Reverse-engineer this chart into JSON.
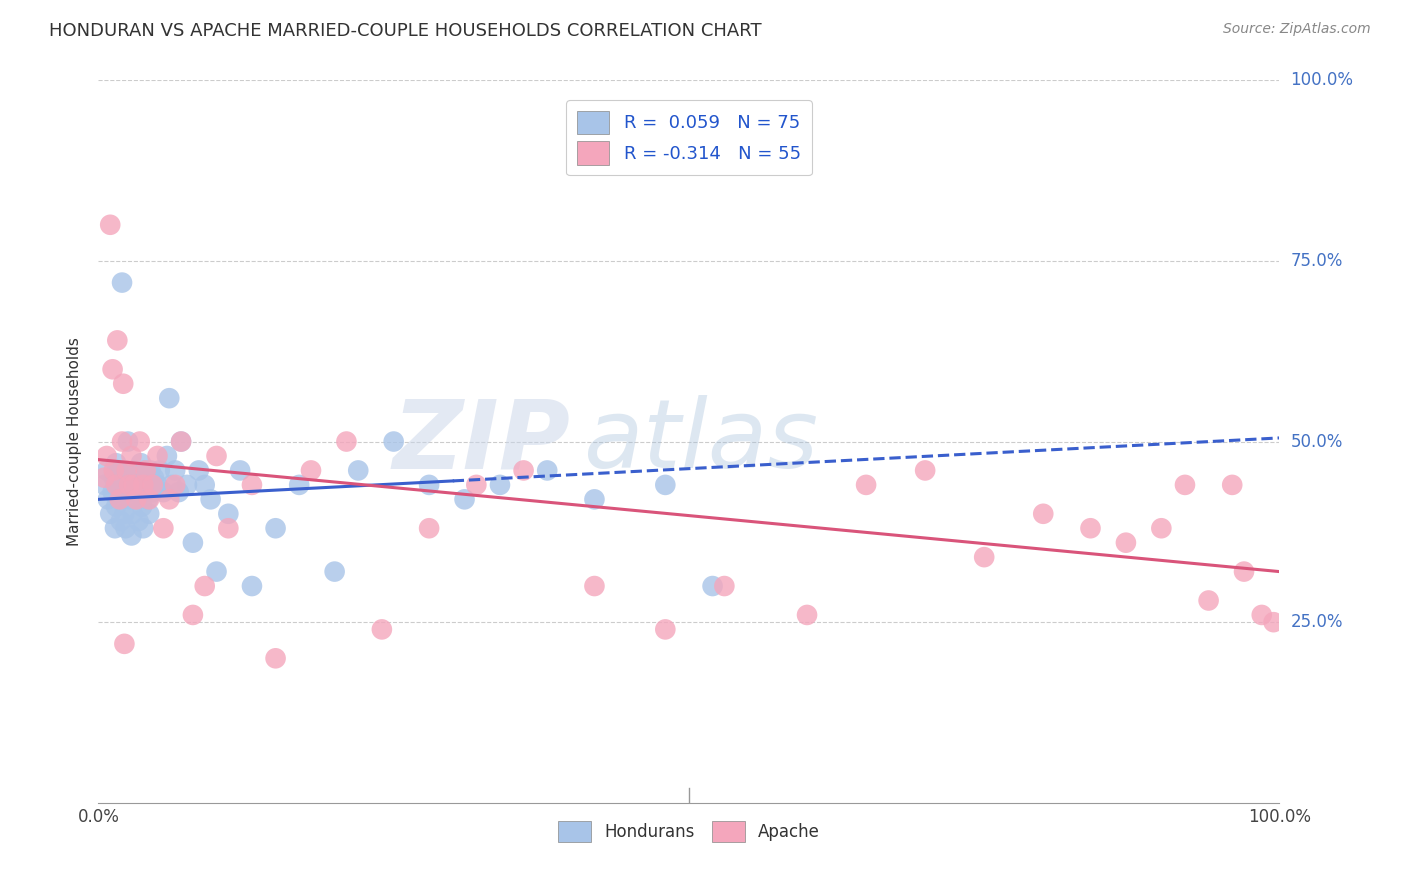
{
  "title": "HONDURAN VS APACHE MARRIED-COUPLE HOUSEHOLDS CORRELATION CHART",
  "source": "Source: ZipAtlas.com",
  "ylabel": "Married-couple Households",
  "watermark_zip": "ZIP",
  "watermark_atlas": "atlas",
  "legend_r_honduran": "R =  0.059",
  "legend_n_honduran": "N = 75",
  "legend_r_apache": "R = -0.314",
  "legend_n_apache": "N = 55",
  "honduran_color": "#a8c4e8",
  "apache_color": "#f4a6bc",
  "line_honduran_color": "#3a5fcd",
  "line_apache_color": "#d9547a",
  "background_color": "#ffffff",
  "grid_color": "#cccccc",
  "xlim": [
    0,
    1.0
  ],
  "ylim": [
    0,
    1.0
  ],
  "ytick_labels": [
    "25.0%",
    "50.0%",
    "75.0%",
    "100.0%"
  ],
  "ytick_positions": [
    0.25,
    0.5,
    0.75,
    1.0
  ],
  "honduran_x": [
    0.005,
    0.007,
    0.008,
    0.01,
    0.012,
    0.013,
    0.014,
    0.015,
    0.015,
    0.016,
    0.017,
    0.018,
    0.019,
    0.02,
    0.02,
    0.021,
    0.022,
    0.022,
    0.023,
    0.024,
    0.025,
    0.025,
    0.026,
    0.027,
    0.028,
    0.029,
    0.03,
    0.03,
    0.031,
    0.032,
    0.033,
    0.034,
    0.035,
    0.036,
    0.037,
    0.038,
    0.039,
    0.04,
    0.041,
    0.042,
    0.043,
    0.044,
    0.045,
    0.046,
    0.047,
    0.05,
    0.052,
    0.055,
    0.058,
    0.06,
    0.062,
    0.065,
    0.068,
    0.07,
    0.075,
    0.08,
    0.085,
    0.09,
    0.095,
    0.1,
    0.11,
    0.12,
    0.13,
    0.15,
    0.17,
    0.2,
    0.22,
    0.25,
    0.28,
    0.31,
    0.34,
    0.38,
    0.42,
    0.48,
    0.52
  ],
  "honduran_y": [
    0.44,
    0.46,
    0.42,
    0.4,
    0.43,
    0.45,
    0.38,
    0.41,
    0.47,
    0.44,
    0.46,
    0.42,
    0.39,
    0.72,
    0.44,
    0.43,
    0.46,
    0.4,
    0.38,
    0.45,
    0.43,
    0.5,
    0.44,
    0.42,
    0.37,
    0.4,
    0.46,
    0.44,
    0.43,
    0.45,
    0.42,
    0.39,
    0.44,
    0.47,
    0.41,
    0.38,
    0.46,
    0.43,
    0.44,
    0.42,
    0.4,
    0.46,
    0.44,
    0.43,
    0.45,
    0.44,
    0.46,
    0.43,
    0.48,
    0.56,
    0.44,
    0.46,
    0.43,
    0.5,
    0.44,
    0.36,
    0.46,
    0.44,
    0.42,
    0.32,
    0.4,
    0.46,
    0.3,
    0.38,
    0.44,
    0.32,
    0.46,
    0.5,
    0.44,
    0.42,
    0.44,
    0.46,
    0.42,
    0.44,
    0.3
  ],
  "apache_x": [
    0.005,
    0.007,
    0.01,
    0.012,
    0.013,
    0.015,
    0.016,
    0.018,
    0.02,
    0.021,
    0.022,
    0.024,
    0.026,
    0.028,
    0.03,
    0.032,
    0.035,
    0.038,
    0.04,
    0.043,
    0.046,
    0.05,
    0.055,
    0.06,
    0.065,
    0.07,
    0.08,
    0.09,
    0.1,
    0.11,
    0.13,
    0.15,
    0.18,
    0.21,
    0.24,
    0.28,
    0.32,
    0.36,
    0.42,
    0.48,
    0.53,
    0.6,
    0.65,
    0.7,
    0.75,
    0.8,
    0.84,
    0.87,
    0.9,
    0.92,
    0.94,
    0.96,
    0.97,
    0.985,
    0.995
  ],
  "apache_y": [
    0.45,
    0.48,
    0.8,
    0.6,
    0.46,
    0.44,
    0.64,
    0.42,
    0.5,
    0.58,
    0.22,
    0.46,
    0.44,
    0.48,
    0.44,
    0.42,
    0.5,
    0.44,
    0.46,
    0.42,
    0.44,
    0.48,
    0.38,
    0.42,
    0.44,
    0.5,
    0.26,
    0.3,
    0.48,
    0.38,
    0.44,
    0.2,
    0.46,
    0.5,
    0.24,
    0.38,
    0.44,
    0.46,
    0.3,
    0.24,
    0.3,
    0.26,
    0.44,
    0.46,
    0.34,
    0.4,
    0.38,
    0.36,
    0.38,
    0.44,
    0.28,
    0.44,
    0.32,
    0.26,
    0.25
  ]
}
